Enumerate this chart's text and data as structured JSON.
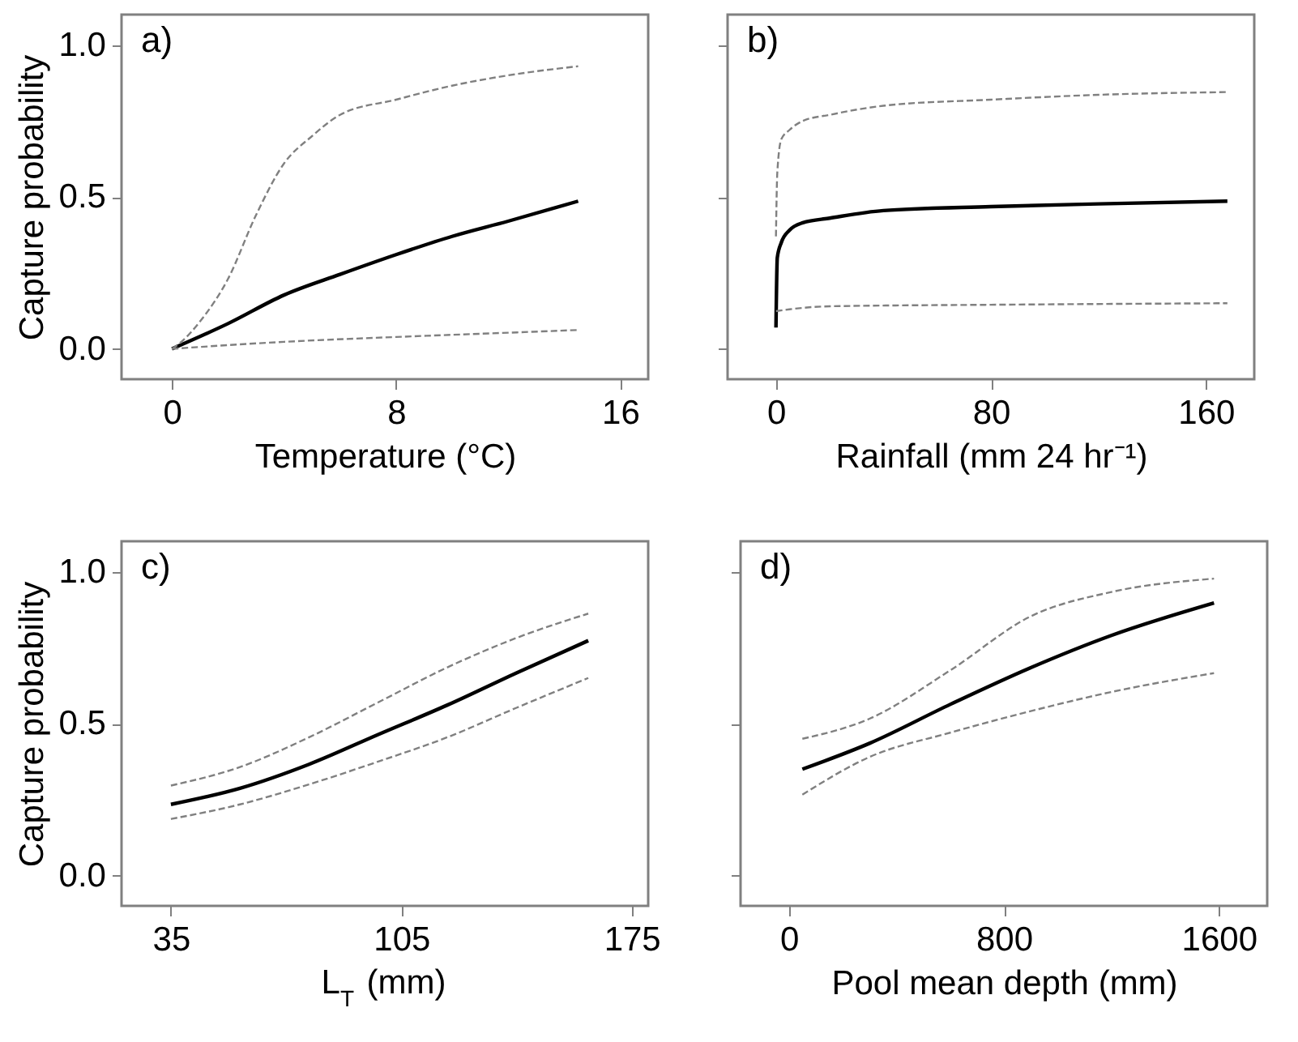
{
  "chart_data": [
    {
      "type": "line",
      "xlabel": "Temperature (°C)",
      "ylabel": "Capture probability",
      "annotations": [
        "a)"
      ],
      "xlim": [
        -1.8,
        17
      ],
      "ylim": [
        -0.1,
        1.1
      ],
      "xticks": [
        0,
        8,
        16
      ],
      "yticks": [
        {
          "value": 0,
          "label": "0.0"
        },
        0.5,
        {
          "value": 1,
          "label": "1.0"
        }
      ],
      "grid": false,
      "series": [
        {
          "color": "#000000",
          "line_style": "solid",
          "x": [
            0,
            2,
            4,
            6,
            8,
            10,
            12,
            14.5
          ],
          "values": [
            0,
            0.083,
            0.177,
            0.245,
            0.31,
            0.37,
            0.42,
            0.486
          ]
        },
        {
          "color": "#808080",
          "line_style": "dashed",
          "x": [
            0,
            0.3,
            1,
            2,
            3,
            4,
            5,
            6,
            8,
            10,
            12,
            14.5
          ],
          "values": [
            0,
            0.02,
            0.09,
            0.23,
            0.44,
            0.61,
            0.7,
            0.77,
            0.82,
            0.866,
            0.9,
            0.93
          ]
        },
        {
          "color": "#808080",
          "line_style": "dashed",
          "x": [
            0,
            4,
            8,
            12,
            14.5
          ],
          "values": [
            0,
            0.023,
            0.039,
            0.053,
            0.062
          ]
        }
      ]
    },
    {
      "type": "line",
      "xlabel": "Rainfall (mm 24 hr⁻¹)",
      "annotations": [
        "b)"
      ],
      "xlim": [
        -18,
        178
      ],
      "ylim": [
        -0.1,
        1.1
      ],
      "xticks": [
        0,
        80,
        160
      ],
      "yticks": [
        {
          "value": 0,
          "label": null
        },
        {
          "value": 0.5,
          "label": null
        },
        {
          "value": 1,
          "label": null
        }
      ],
      "tick_labels": "x",
      "grid": false,
      "series": [
        {
          "color": "#000000",
          "line_style": "solid",
          "x": [
            0,
            0.5,
            2,
            5,
            10,
            20,
            40,
            80,
            120,
            168
          ],
          "values": [
            0.07,
            0.3,
            0.35,
            0.39,
            0.415,
            0.43,
            0.455,
            0.468,
            0.477,
            0.486
          ]
        },
        {
          "color": "#808080",
          "line_style": "dashed",
          "x": [
            0,
            0.5,
            2,
            5,
            10,
            20,
            40,
            80,
            120,
            168
          ],
          "values": [
            0.37,
            0.58,
            0.69,
            0.72,
            0.75,
            0.77,
            0.8,
            0.82,
            0.836,
            0.845
          ]
        },
        {
          "color": "#808080",
          "line_style": "dashed",
          "x": [
            0,
            5,
            20,
            80,
            168
          ],
          "values": [
            0.124,
            0.13,
            0.14,
            0.145,
            0.15
          ]
        }
      ]
    },
    {
      "type": "line",
      "xlabel": "L$_{T}$ (mm)",
      "ylabel": "Capture probability",
      "annotations": [
        "c)"
      ],
      "xlim": [
        20,
        180
      ],
      "ylim": [
        -0.1,
        1.1
      ],
      "xticks": [
        35,
        105,
        175
      ],
      "yticks": [
        {
          "value": 0,
          "label": "0.0"
        },
        0.5,
        {
          "value": 1,
          "label": "1.0"
        }
      ],
      "grid": false,
      "series": [
        {
          "color": "#000000",
          "line_style": "solid",
          "x": [
            35,
            56,
            77,
            98,
            119,
            140,
            161.8
          ],
          "values": [
            0.234,
            0.287,
            0.366,
            0.464,
            0.561,
            0.667,
            0.773
          ]
        },
        {
          "color": "#808080",
          "line_style": "dashed",
          "x": [
            35,
            56,
            77,
            98,
            119,
            140,
            161.8
          ],
          "values": [
            0.296,
            0.357,
            0.455,
            0.57,
            0.685,
            0.782,
            0.862
          ]
        },
        {
          "color": "#808080",
          "line_style": "dashed",
          "x": [
            35,
            56,
            77,
            98,
            119,
            140,
            161.8
          ],
          "values": [
            0.186,
            0.234,
            0.3,
            0.375,
            0.455,
            0.552,
            0.65
          ]
        }
      ]
    },
    {
      "type": "line",
      "xlabel": "Pool mean depth (mm)",
      "annotations": [
        "d)"
      ],
      "xlim": [
        -180,
        1780
      ],
      "ylim": [
        -0.1,
        1.1
      ],
      "xticks": [
        0,
        800,
        1600
      ],
      "yticks": [
        {
          "value": 0,
          "label": null
        },
        {
          "value": 0.5,
          "label": null
        },
        {
          "value": 1,
          "label": null
        }
      ],
      "tick_labels": "x",
      "grid": false,
      "series": [
        {
          "color": "#000000",
          "line_style": "solid",
          "x": [
            50,
            300,
            600,
            900,
            1200,
            1582
          ],
          "values": [
            0.35,
            0.435,
            0.563,
            0.684,
            0.79,
            0.897
          ]
        },
        {
          "color": "#808080",
          "line_style": "dashed",
          "x": [
            50,
            300,
            600,
            900,
            1200,
            1582
          ],
          "values": [
            0.45,
            0.516,
            0.675,
            0.853,
            0.933,
            0.977
          ]
        },
        {
          "color": "#808080",
          "line_style": "dashed",
          "x": [
            50,
            300,
            600,
            900,
            1200,
            1582
          ],
          "values": [
            0.266,
            0.39,
            0.47,
            0.541,
            0.604,
            0.666
          ]
        }
      ]
    }
  ]
}
